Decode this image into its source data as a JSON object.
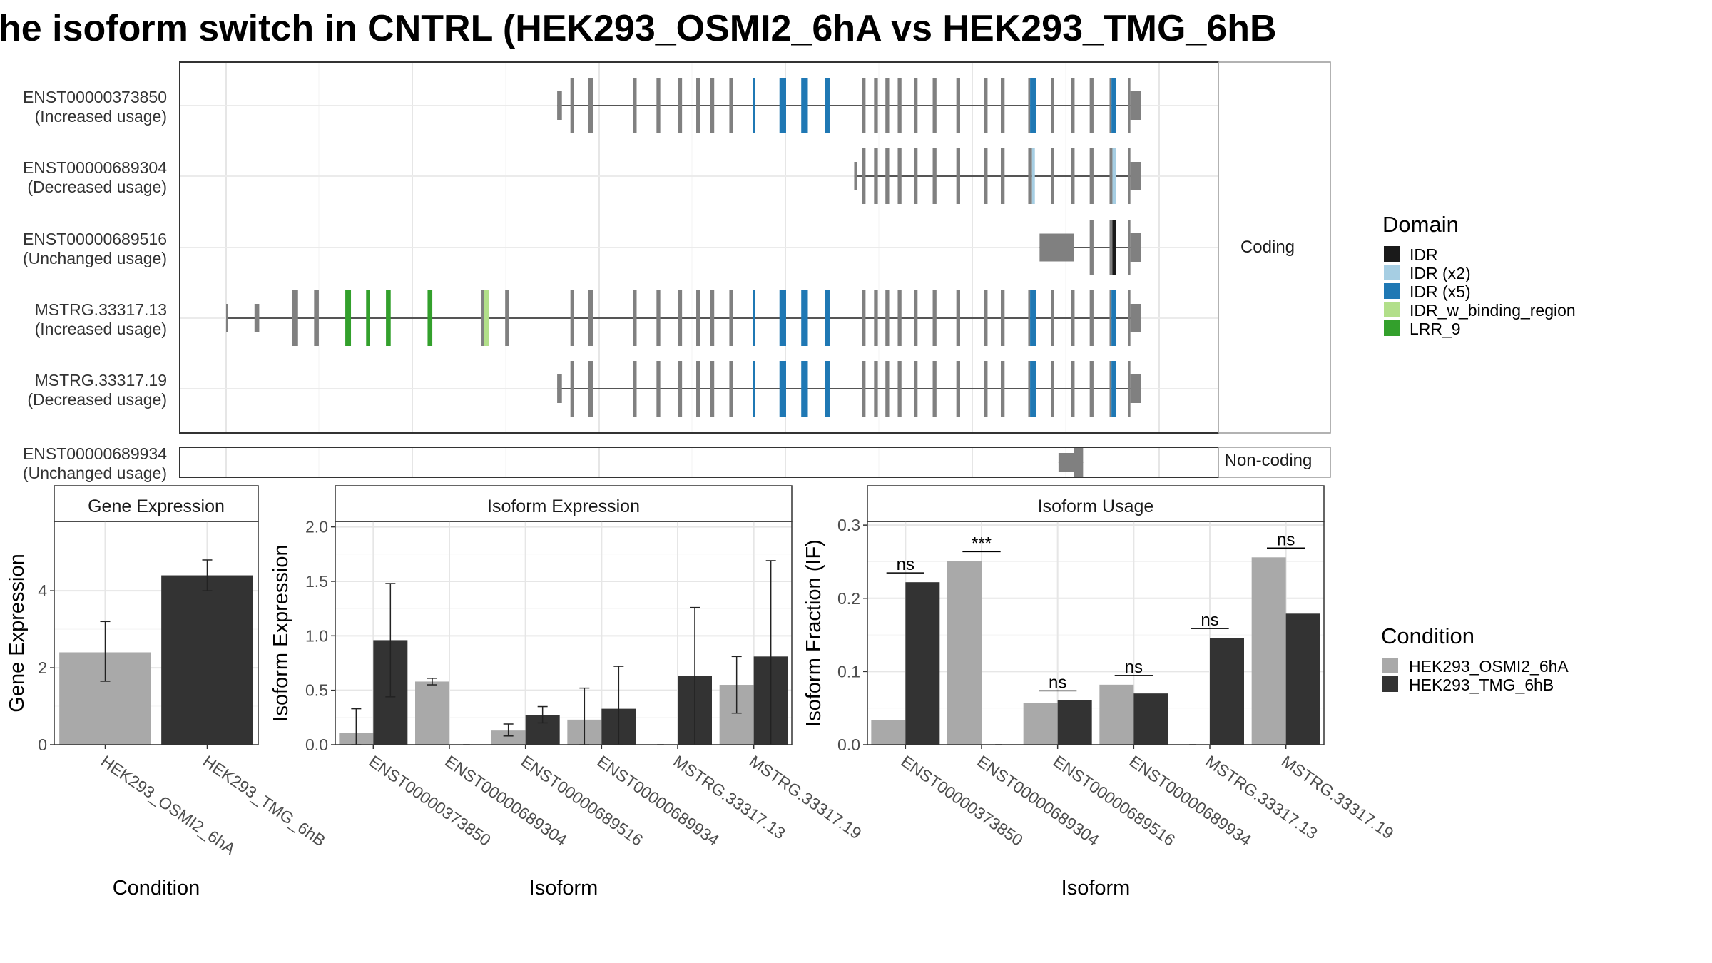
{
  "title": "he isoform switch in CNTRL (HEK293_OSMI2_6hA vs HEK293_TMG_6hB",
  "colors": {
    "cond_a": "#a9a9a9",
    "cond_b": "#333333",
    "exon": "#808080",
    "IDR": "#1a1a1a",
    "IDR (x2)": "#a6cee3",
    "IDR (x5)": "#1f78b4",
    "IDR_w_binding_region": "#b2df8a",
    "LRR_9": "#33a02c"
  },
  "structure": {
    "facet_coding": "Coding",
    "facet_noncoding": "Non-coding",
    "genomic_range": [
      0,
      1000
    ],
    "coding": [
      {
        "id": "ENST00000373850",
        "status": "(Increased usage)",
        "exons": [
          [
            350,
            355,
            "s"
          ],
          [
            364,
            368,
            "t"
          ],
          [
            383,
            388,
            "t"
          ],
          [
            430,
            434,
            "t"
          ],
          [
            455,
            459,
            "t"
          ],
          [
            478,
            482,
            "t"
          ],
          [
            497,
            501,
            "t"
          ],
          [
            512,
            516,
            "t"
          ],
          [
            532,
            536,
            "t"
          ],
          [
            557,
            559,
            "X5"
          ],
          [
            585,
            592,
            "X5"
          ],
          [
            608,
            615,
            "X5"
          ],
          [
            633,
            638,
            "X5"
          ],
          [
            672,
            676,
            "t"
          ],
          [
            685,
            689,
            "t"
          ],
          [
            697,
            701,
            "t"
          ],
          [
            710,
            714,
            "t"
          ],
          [
            727,
            731,
            "t"
          ],
          [
            747,
            751,
            "t"
          ],
          [
            772,
            776,
            "t"
          ],
          [
            801,
            805,
            "t"
          ],
          [
            819,
            823,
            "t"
          ],
          [
            848,
            850,
            "t"
          ],
          [
            850,
            856,
            "X5"
          ],
          [
            872,
            875,
            "t"
          ],
          [
            893,
            897,
            "t"
          ],
          [
            913,
            917,
            "t"
          ],
          [
            934,
            936,
            "t"
          ],
          [
            936,
            941,
            "X5"
          ],
          [
            954,
            956,
            "t"
          ],
          [
            956,
            967,
            "s"
          ]
        ]
      },
      {
        "id": "ENST00000689304",
        "status": "(Decreased usage)",
        "exons": [
          [
            664,
            667,
            "s"
          ],
          [
            672,
            676,
            "t"
          ],
          [
            685,
            689,
            "t"
          ],
          [
            697,
            701,
            "t"
          ],
          [
            710,
            714,
            "t"
          ],
          [
            727,
            731,
            "t"
          ],
          [
            747,
            751,
            "t"
          ],
          [
            772,
            776,
            "t"
          ],
          [
            801,
            805,
            "t"
          ],
          [
            819,
            823,
            "t"
          ],
          [
            848,
            852,
            "t"
          ],
          [
            852,
            855,
            "X2"
          ],
          [
            872,
            875,
            "t"
          ],
          [
            893,
            897,
            "t"
          ],
          [
            913,
            917,
            "t"
          ],
          [
            934,
            937,
            "t"
          ],
          [
            937,
            941,
            "X2"
          ],
          [
            954,
            956,
            "t"
          ],
          [
            956,
            967,
            "s"
          ]
        ]
      },
      {
        "id": "ENST00000689516",
        "status": "(Unchanged usage)",
        "exons": [
          [
            860,
            896,
            "t"
          ],
          [
            913,
            917,
            "t"
          ],
          [
            934,
            937,
            "t"
          ],
          [
            937,
            941,
            "IDR"
          ],
          [
            954,
            956,
            "t"
          ],
          [
            956,
            967,
            "s"
          ]
        ]
      },
      {
        "id": "MSTRG.33317.13",
        "status": "(Increased usage)",
        "exons": [
          [
            0,
            2,
            "s"
          ],
          [
            30,
            35,
            "s"
          ],
          [
            70,
            76,
            "t"
          ],
          [
            93,
            98,
            "t"
          ],
          [
            126,
            132,
            "LRR"
          ],
          [
            148,
            152,
            "LRR"
          ],
          [
            169,
            174,
            "LRR"
          ],
          [
            213,
            218,
            "LRR"
          ],
          [
            270,
            273,
            "t"
          ],
          [
            273,
            278,
            "BIND"
          ],
          [
            295,
            299,
            "t"
          ],
          [
            364,
            368,
            "t"
          ],
          [
            383,
            388,
            "t"
          ],
          [
            430,
            434,
            "t"
          ],
          [
            455,
            459,
            "t"
          ],
          [
            478,
            482,
            "t"
          ],
          [
            497,
            501,
            "t"
          ],
          [
            512,
            516,
            "t"
          ],
          [
            532,
            536,
            "t"
          ],
          [
            557,
            559,
            "X5"
          ],
          [
            585,
            592,
            "X5"
          ],
          [
            608,
            615,
            "X5"
          ],
          [
            633,
            638,
            "X5"
          ],
          [
            672,
            676,
            "t"
          ],
          [
            685,
            689,
            "t"
          ],
          [
            697,
            701,
            "t"
          ],
          [
            710,
            714,
            "t"
          ],
          [
            727,
            731,
            "t"
          ],
          [
            747,
            751,
            "t"
          ],
          [
            772,
            776,
            "t"
          ],
          [
            801,
            805,
            "t"
          ],
          [
            819,
            823,
            "t"
          ],
          [
            848,
            850,
            "t"
          ],
          [
            850,
            856,
            "X5"
          ],
          [
            872,
            875,
            "t"
          ],
          [
            893,
            897,
            "t"
          ],
          [
            913,
            917,
            "t"
          ],
          [
            934,
            936,
            "t"
          ],
          [
            936,
            941,
            "X5"
          ],
          [
            954,
            956,
            "t"
          ],
          [
            956,
            967,
            "s"
          ]
        ]
      },
      {
        "id": "MSTRG.33317.19",
        "status": "(Decreased usage)",
        "exons": [
          [
            350,
            355,
            "s"
          ],
          [
            364,
            368,
            "t"
          ],
          [
            383,
            388,
            "t"
          ],
          [
            430,
            434,
            "t"
          ],
          [
            455,
            459,
            "t"
          ],
          [
            478,
            482,
            "t"
          ],
          [
            497,
            501,
            "t"
          ],
          [
            512,
            516,
            "t"
          ],
          [
            532,
            536,
            "t"
          ],
          [
            557,
            559,
            "X5"
          ],
          [
            585,
            592,
            "X5"
          ],
          [
            608,
            615,
            "X5"
          ],
          [
            633,
            638,
            "X5"
          ],
          [
            672,
            676,
            "t"
          ],
          [
            685,
            689,
            "t"
          ],
          [
            697,
            701,
            "t"
          ],
          [
            710,
            714,
            "t"
          ],
          [
            727,
            731,
            "t"
          ],
          [
            747,
            751,
            "t"
          ],
          [
            772,
            776,
            "t"
          ],
          [
            801,
            805,
            "t"
          ],
          [
            819,
            823,
            "t"
          ],
          [
            848,
            850,
            "t"
          ],
          [
            850,
            856,
            "X5"
          ],
          [
            872,
            875,
            "t"
          ],
          [
            893,
            897,
            "t"
          ],
          [
            913,
            917,
            "t"
          ],
          [
            934,
            936,
            "t"
          ],
          [
            936,
            941,
            "X5"
          ],
          [
            954,
            956,
            "t"
          ],
          [
            956,
            967,
            "s"
          ]
        ]
      }
    ],
    "noncoding": [
      {
        "id": "ENST00000689934",
        "status": "(Unchanged usage)",
        "exons": [
          [
            880,
            896,
            "s"
          ],
          [
            896,
            906,
            "t"
          ]
        ]
      }
    ]
  },
  "legend_domain": {
    "title": "Domain",
    "items": [
      {
        "label": "IDR",
        "key": "IDR"
      },
      {
        "label": "IDR (x2)",
        "key": "IDR (x2)"
      },
      {
        "label": "IDR (x5)",
        "key": "IDR (x5)"
      },
      {
        "label": "IDR_w_binding_region",
        "key": "IDR_w_binding_region"
      },
      {
        "label": "LRR_9",
        "key": "LRR_9"
      }
    ]
  },
  "legend_condition": {
    "title": "Condition",
    "items": [
      "HEK293_OSMI2_6hA",
      "HEK293_TMG_6hB"
    ]
  },
  "chart_data": [
    {
      "type": "bar",
      "title": "Gene Expression",
      "xlabel": "Condition",
      "ylabel": "Gene Expression",
      "ylim": [
        0,
        5.8
      ],
      "yticks": [
        0,
        2,
        4
      ],
      "categories": [
        "HEK293_OSMI2_6hA",
        "HEK293_TMG_6hB"
      ],
      "values": [
        2.4,
        4.4
      ],
      "errors": [
        [
          1.65,
          3.2
        ],
        [
          4.0,
          4.8
        ]
      ]
    },
    {
      "type": "bar",
      "title": "Isoform Expression",
      "xlabel": "Isoform",
      "ylabel": "Isoform Expression",
      "ylim": [
        0,
        2.05
      ],
      "yticks": [
        "0.0",
        "0.5",
        "1.0",
        "1.5",
        "2.0"
      ],
      "categories": [
        "ENST00000373850",
        "ENST00000689304",
        "ENST00000689516",
        "ENST00000689934",
        "MSTRG.33317.13",
        "MSTRG.33317.19"
      ],
      "series": [
        {
          "name": "HEK293_OSMI2_6hA",
          "values": [
            0.11,
            0.58,
            0.13,
            0.23,
            0.0,
            0.55
          ],
          "errors": [
            [
              0.0,
              0.33
            ],
            [
              0.55,
              0.61
            ],
            [
              0.08,
              0.19
            ],
            [
              0.0,
              0.52
            ],
            [
              0.0,
              0.0
            ],
            [
              0.29,
              0.81
            ]
          ]
        },
        {
          "name": "HEK293_TMG_6hB",
          "values": [
            0.96,
            0.0,
            0.27,
            0.33,
            0.63,
            0.81
          ],
          "errors": [
            [
              0.44,
              1.48
            ],
            [
              0.0,
              0.0
            ],
            [
              0.2,
              0.35
            ],
            [
              0.0,
              0.72
            ],
            [
              0.0,
              1.26
            ],
            [
              0.0,
              1.69
            ]
          ]
        }
      ]
    },
    {
      "type": "bar",
      "title": "Isoform Usage",
      "xlabel": "Isoform",
      "ylabel": "Isoform Fraction (IF)",
      "ylim": [
        0,
        0.305
      ],
      "yticks": [
        "0.0",
        "0.1",
        "0.2",
        "0.3"
      ],
      "categories": [
        "ENST00000373850",
        "ENST00000689304",
        "ENST00000689516",
        "ENST00000689934",
        "MSTRG.33317.13",
        "MSTRG.33317.19"
      ],
      "series": [
        {
          "name": "HEK293_OSMI2_6hA",
          "values": [
            0.034,
            0.251,
            0.057,
            0.082,
            0.0,
            0.256
          ]
        },
        {
          "name": "HEK293_TMG_6hB",
          "values": [
            0.222,
            0.0,
            0.061,
            0.07,
            0.146,
            0.179
          ]
        }
      ],
      "significance": [
        "ns",
        "***",
        "ns",
        "ns",
        "ns",
        "ns"
      ]
    }
  ]
}
